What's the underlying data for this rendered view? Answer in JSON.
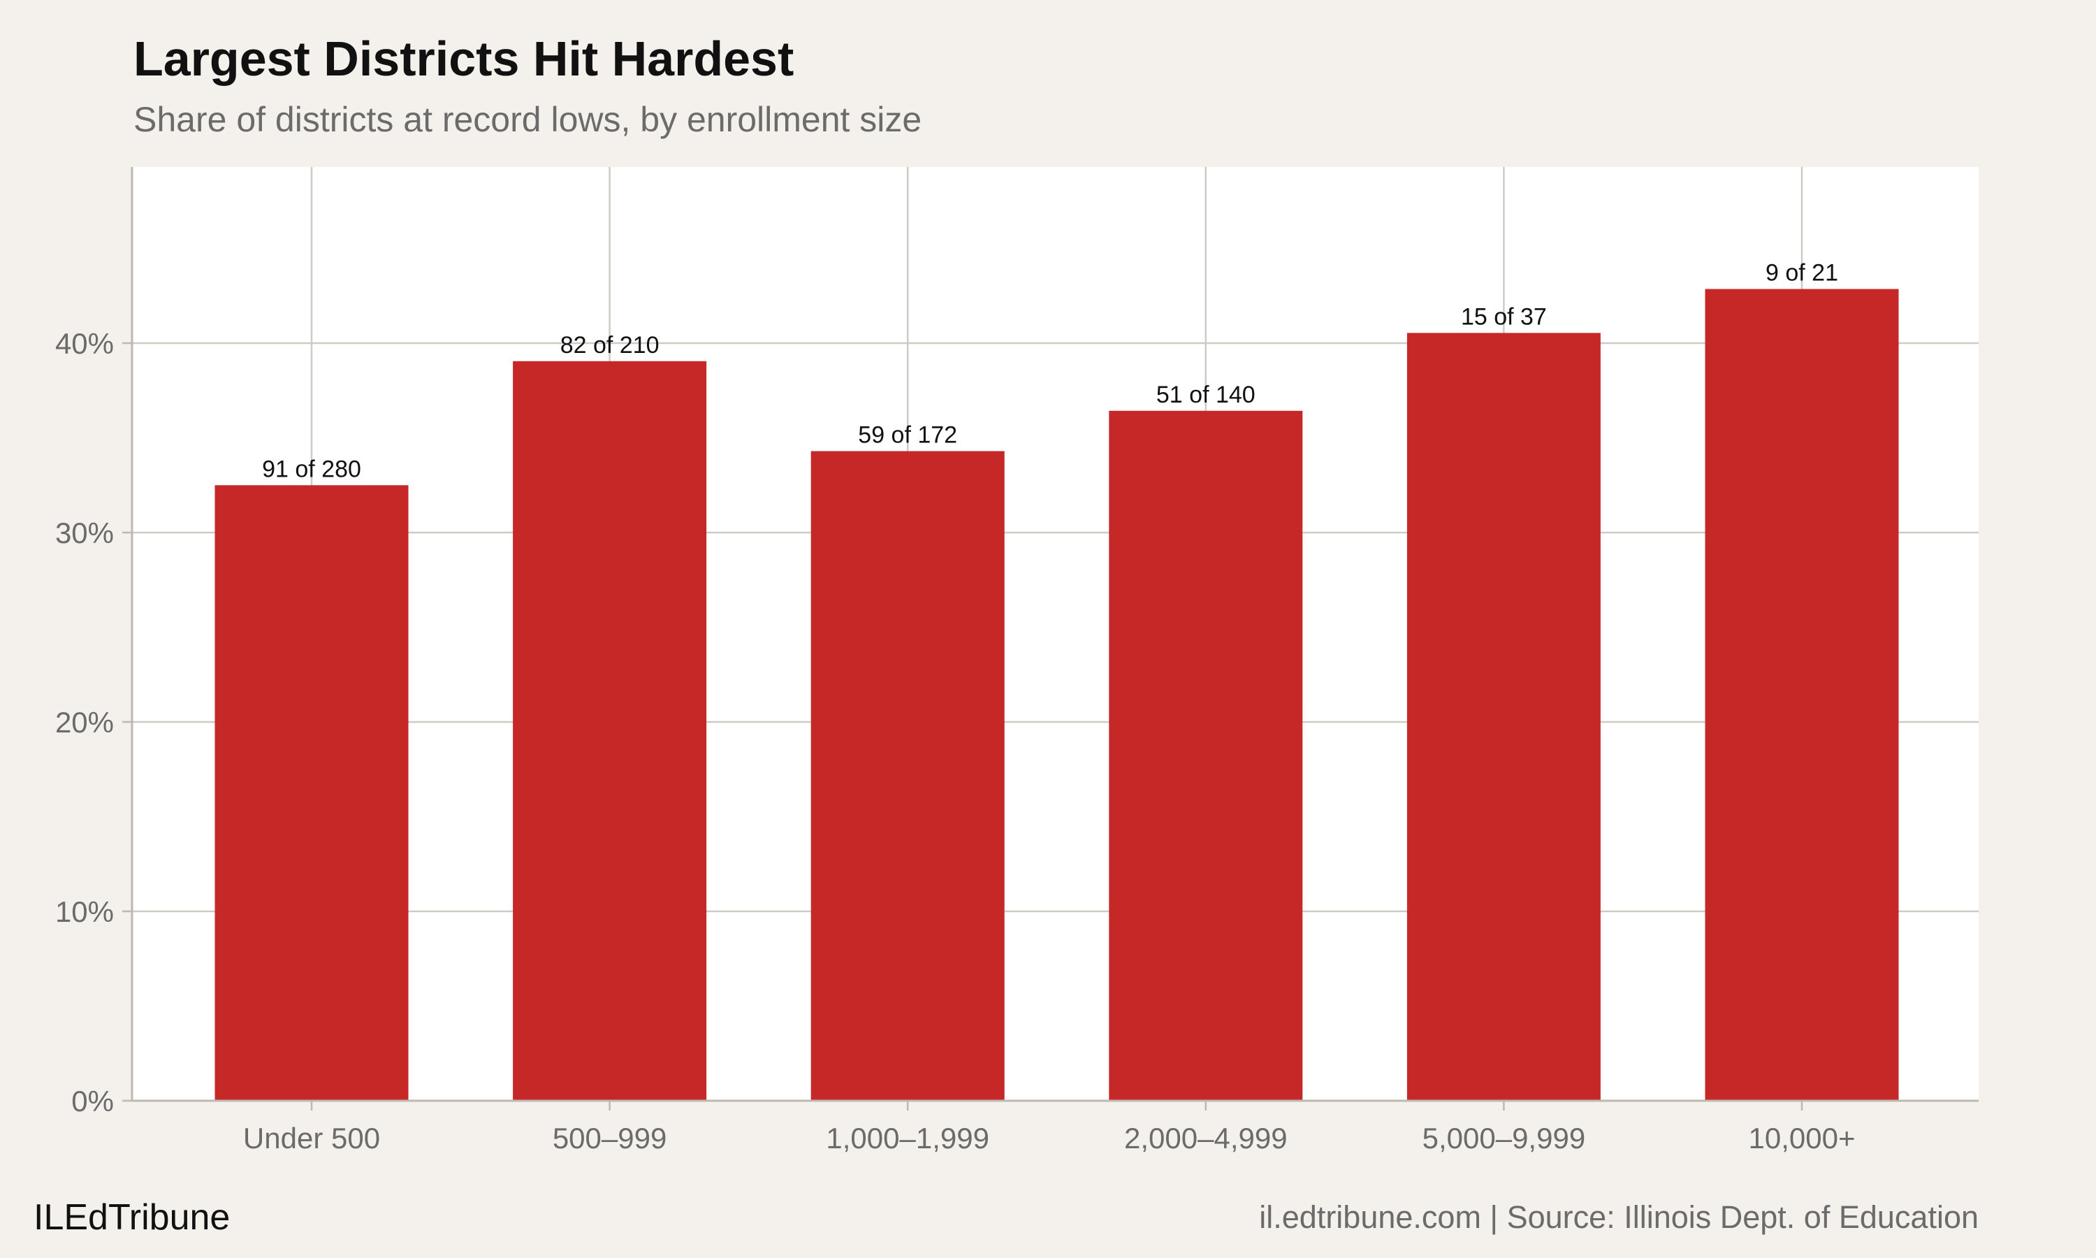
{
  "chart_data": {
    "type": "bar",
    "title": "Largest Districts Hit Hardest",
    "subtitle": "Share of districts at record lows, by enrollment size",
    "xlabel": "",
    "ylabel": "",
    "categories": [
      "Under 500",
      "500–999",
      "1,000–1,999",
      "2,000–4,999",
      "5,000–9,999",
      "10,000+"
    ],
    "values": [
      32.5,
      39.05,
      34.3,
      36.43,
      40.54,
      42.86
    ],
    "data_labels": [
      "91 of 280",
      "82 of 210",
      "59 of 172",
      "51 of 140",
      "15 of 37",
      "9 of 21"
    ],
    "ylim": [
      0,
      49.3
    ],
    "yticks": [
      0,
      10,
      20,
      30,
      40
    ],
    "ytick_labels": [
      "0%",
      "10%",
      "20%",
      "30%",
      "40%"
    ],
    "grid": true,
    "bar_color": "#c62828",
    "background": "#f4f1ec",
    "plot_background": "#ffffff"
  },
  "footer": {
    "brand": "ILEdTribune",
    "source": "il.edtribune.com | Source: Illinois Dept. of Education"
  }
}
